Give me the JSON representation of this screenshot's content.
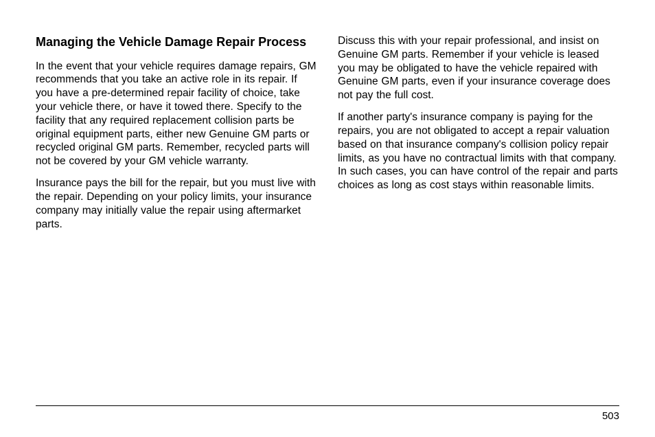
{
  "heading": "Managing the Vehicle Damage Repair Process",
  "left": {
    "p1": "In the event that your vehicle requires damage repairs, GM recommends that you take an active role in its repair. If you have a pre-determined repair facility of choice, take your vehicle there, or have it towed there. Specify to the facility that any required replacement collision parts be original equipment parts, either new Genuine GM parts or recycled original GM parts. Remember, recycled parts will not be covered by your GM vehicle warranty.",
    "p2": "Insurance pays the bill for the repair, but you must live with the repair. Depending on your policy limits, your insurance company may initially value the repair using aftermarket parts."
  },
  "right": {
    "p1": "Discuss this with your repair professional, and insist on Genuine GM parts. Remember if your vehicle is leased you may be obligated to have the vehicle repaired with Genuine GM parts, even if your insurance coverage does not pay the full cost.",
    "p2": "If another party's insurance company is paying for the repairs, you are not obligated to accept a repair valuation based on that insurance company's collision policy repair limits, as you have no contractual limits with that company. In such cases, you can have control of the repair and parts choices as long as cost stays within reasonable limits."
  },
  "page_number": "503"
}
